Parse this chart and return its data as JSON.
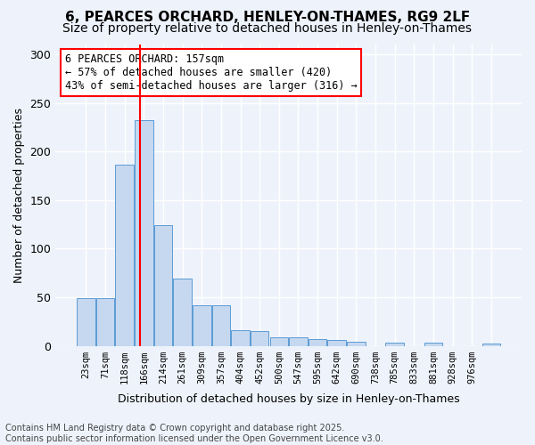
{
  "title": "6, PEARCES ORCHARD, HENLEY-ON-THAMES, RG9 2LF",
  "subtitle": "Size of property relative to detached houses in Henley-on-Thames",
  "xlabel": "Distribution of detached houses by size in Henley-on-Thames",
  "ylabel": "Number of detached properties",
  "bar_color": "#c5d8f0",
  "bar_edge_color": "#5b9bd5",
  "bar_values": [
    49,
    49,
    186,
    232,
    124,
    69,
    42,
    42,
    16,
    15,
    9,
    9,
    7,
    6,
    4,
    0,
    3,
    0,
    3,
    0,
    0,
    2
  ],
  "categories": [
    "23sqm",
    "71sqm",
    "118sqm",
    "166sqm",
    "214sqm",
    "261sqm",
    "309sqm",
    "357sqm",
    "404sqm",
    "452sqm",
    "500sqm",
    "547sqm",
    "595sqm",
    "642sqm",
    "690sqm",
    "738sqm",
    "785sqm",
    "833sqm",
    "881sqm",
    "928sqm",
    "976sqm",
    ""
  ],
  "ylim": [
    0,
    310
  ],
  "yticks": [
    0,
    50,
    100,
    150,
    200,
    250,
    300
  ],
  "annotation_text": "6 PEARCES ORCHARD: 157sqm\n← 57% of detached houses are smaller (420)\n43% of semi-detached houses are larger (316) →",
  "vline_x": 2.82,
  "footer_text": "Contains HM Land Registry data © Crown copyright and database right 2025.\nContains public sector information licensed under the Open Government Licence v3.0.",
  "background_color": "#eef3fb",
  "grid_color": "#ffffff",
  "annotation_fontsize": 8.5,
  "title_fontsize": 11,
  "subtitle_fontsize": 10
}
